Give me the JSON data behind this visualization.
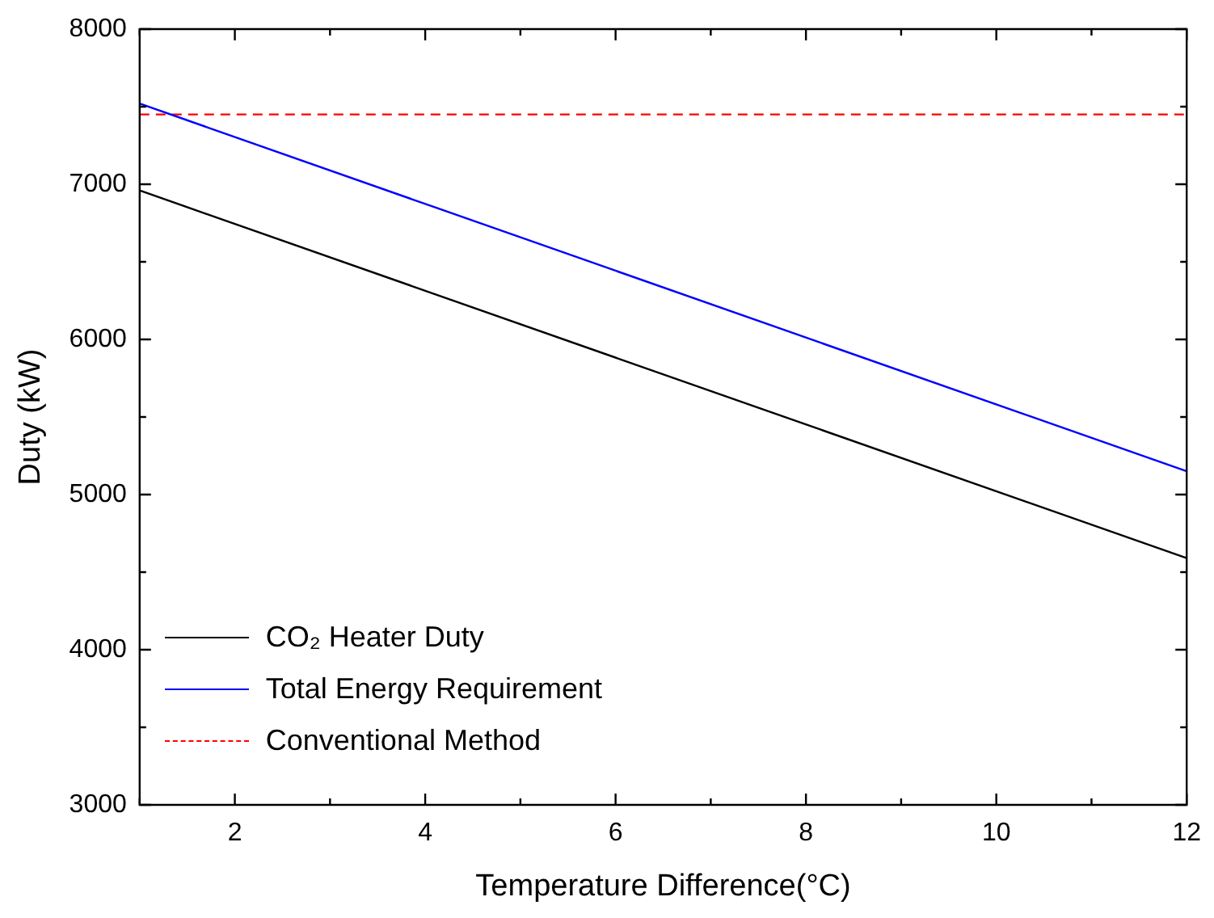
{
  "chart_data": {
    "type": "line",
    "xlabel": "Temperature Difference(°C)",
    "ylabel": "Duty (kW)",
    "x": [
      1,
      12
    ],
    "series": [
      {
        "name": "CO₂ Heater Duty",
        "color": "#000000",
        "values": [
          6960,
          4590
        ]
      },
      {
        "name": "Total Energy Requirement",
        "color": "#0000ff",
        "values": [
          7520,
          5150
        ]
      },
      {
        "name": "Conventional Method",
        "color": "#ff0000",
        "values": [
          7450,
          7450
        ],
        "line_style": "dashed"
      }
    ],
    "xlim": [
      1,
      12
    ],
    "xticks": [
      {
        "value": 1,
        "label": null
      },
      2,
      {
        "value": 3,
        "label": null
      },
      4,
      {
        "value": 5,
        "label": null
      },
      6,
      {
        "value": 7,
        "label": null
      },
      8,
      {
        "value": 9,
        "label": null
      },
      10,
      {
        "value": 11,
        "label": null
      },
      12
    ],
    "ylim": [
      3000,
      8000
    ],
    "yticks": [
      3000,
      {
        "value": 3500,
        "label": null
      },
      4000,
      {
        "value": 4500,
        "label": null
      },
      5000,
      {
        "value": 5500,
        "label": null
      },
      6000,
      {
        "value": 6500,
        "label": null
      },
      7000,
      {
        "value": 7500,
        "label": null
      },
      8000
    ],
    "grid": false,
    "legend": "bottom left",
    "marker": "none"
  }
}
